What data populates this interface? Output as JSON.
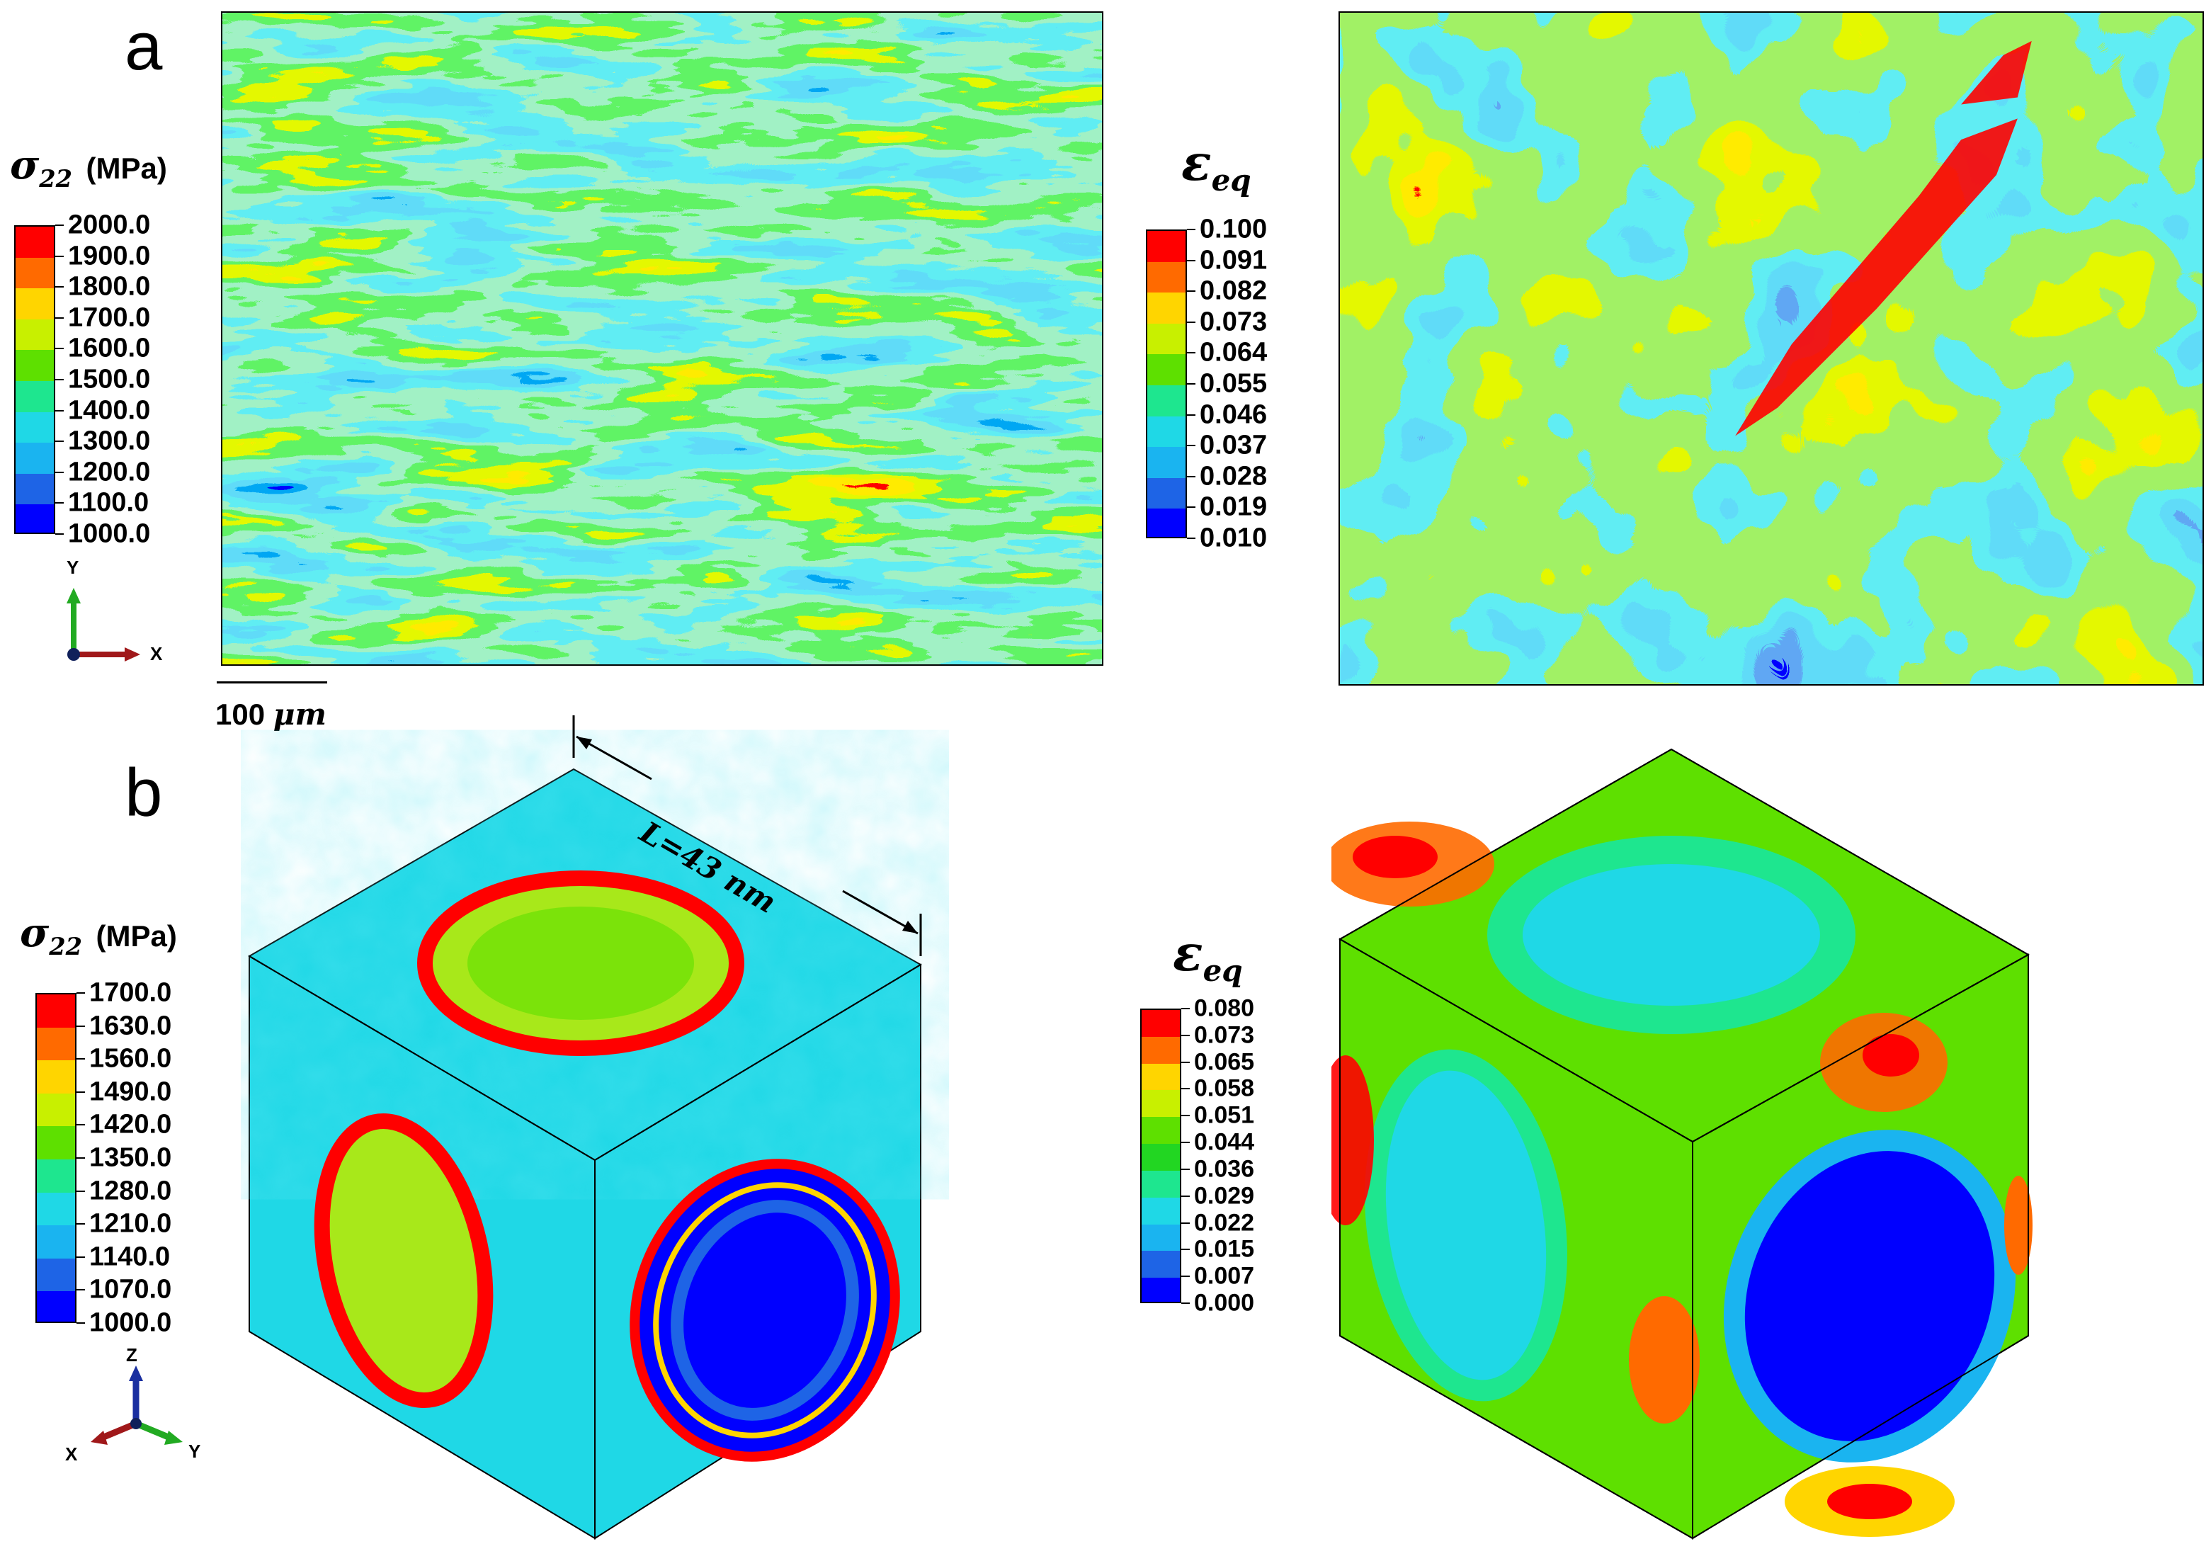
{
  "panel_a": {
    "letter": "a",
    "stress_legend": {
      "symbol": "σ",
      "subscript": "22",
      "unit": "(MPa)",
      "labels": [
        "2000.0",
        "1900.0",
        "1800.0",
        "1700.0",
        "1600.0",
        "1500.0",
        "1400.0",
        "1300.0",
        "1200.0",
        "1100.0",
        "1000.0"
      ]
    },
    "strain_legend": {
      "symbol": "ε",
      "subscript": "eq",
      "labels": [
        "0.100",
        "0.091",
        "0.082",
        "0.073",
        "0.064",
        "0.055",
        "0.046",
        "0.037",
        "0.028",
        "0.019",
        "0.010"
      ]
    },
    "triad": {
      "vertical": "Y",
      "horizontal": "X"
    },
    "scale_bar": {
      "value": "100 ",
      "unit": "μm"
    }
  },
  "panel_b": {
    "letter": "b",
    "stress_legend": {
      "symbol": "σ",
      "subscript": "22",
      "unit": "(MPa)",
      "labels": [
        "1700.0",
        "1630.0",
        "1560.0",
        "1490.0",
        "1420.0",
        "1350.0",
        "1280.0",
        "1210.0",
        "1140.0",
        "1070.0",
        "1000.0"
      ]
    },
    "strain_legend": {
      "symbol": "ε",
      "subscript": "eq",
      "labels": [
        "0.080",
        "0.073",
        "0.065",
        "0.058",
        "0.051",
        "0.044",
        "0.036",
        "0.029",
        "0.022",
        "0.015",
        "0.007",
        "0.000"
      ]
    },
    "triad": {
      "up": "Z",
      "left": "X",
      "right": "Y"
    },
    "dimension": "L=43 nm"
  },
  "colormap": [
    "#ff0000",
    "#ff6a00",
    "#ffd500",
    "#c8f000",
    "#5ee000",
    "#22d622",
    "#1ee68f",
    "#1fd8e6",
    "#1ab4f0",
    "#1e64e6",
    "#0000ff",
    "#0000e0"
  ]
}
